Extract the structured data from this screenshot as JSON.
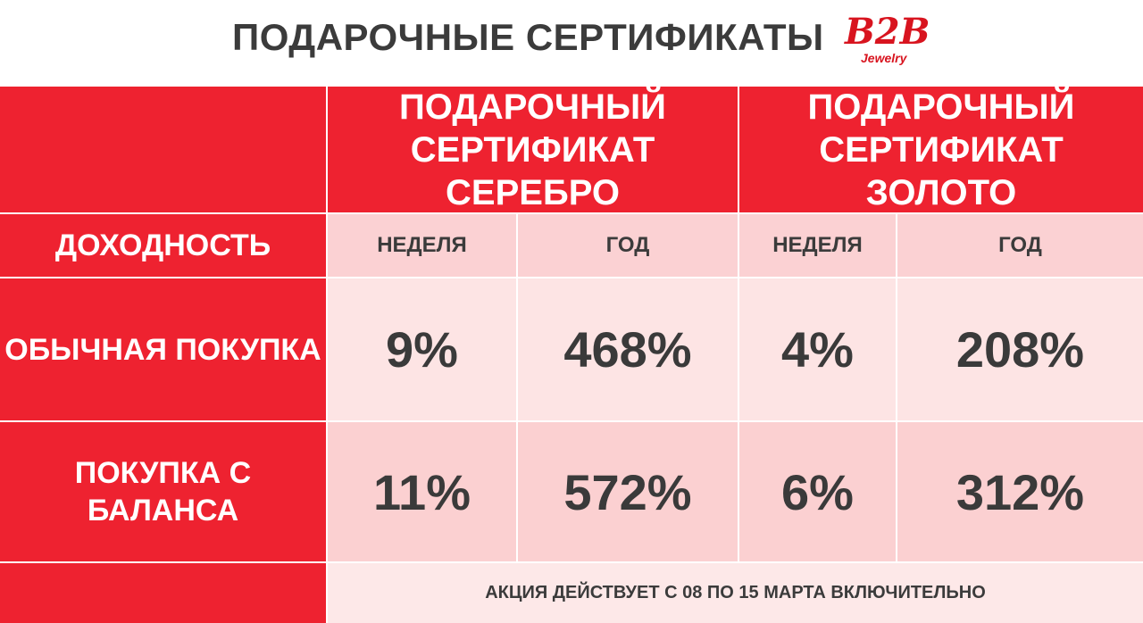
{
  "header": {
    "title": "ПОДАРОЧНЫЕ СЕРТИФИКАТЫ",
    "logo": {
      "main": "B2B",
      "sub": "Jewelry"
    }
  },
  "table": {
    "columns": [
      "ПОДАРОЧНЫЙ СЕРТИФИКАТ СЕРЕБРО",
      "ПОДАРОЧНЫЙ СЕРТИФИКАТ ЗОЛОТО"
    ],
    "row_header": "ДОХОДНОСТЬ",
    "subcolumns": [
      "НЕДЕЛЯ",
      "ГОД",
      "НЕДЕЛЯ",
      "ГОД"
    ],
    "rows": [
      {
        "label": "ОБЫЧНАЯ ПОКУПКА",
        "values": [
          "9%",
          "468%",
          "4%",
          "208%"
        ]
      },
      {
        "label": "ПОКУПКА С БАЛАНСА",
        "values": [
          "11%",
          "572%",
          "6%",
          "312%"
        ]
      }
    ]
  },
  "footer": "АКЦИЯ ДЕЙСТВУЕТ С 08 ПО 15 МАРТА ВКЛЮЧИТЕЛЬНО"
}
